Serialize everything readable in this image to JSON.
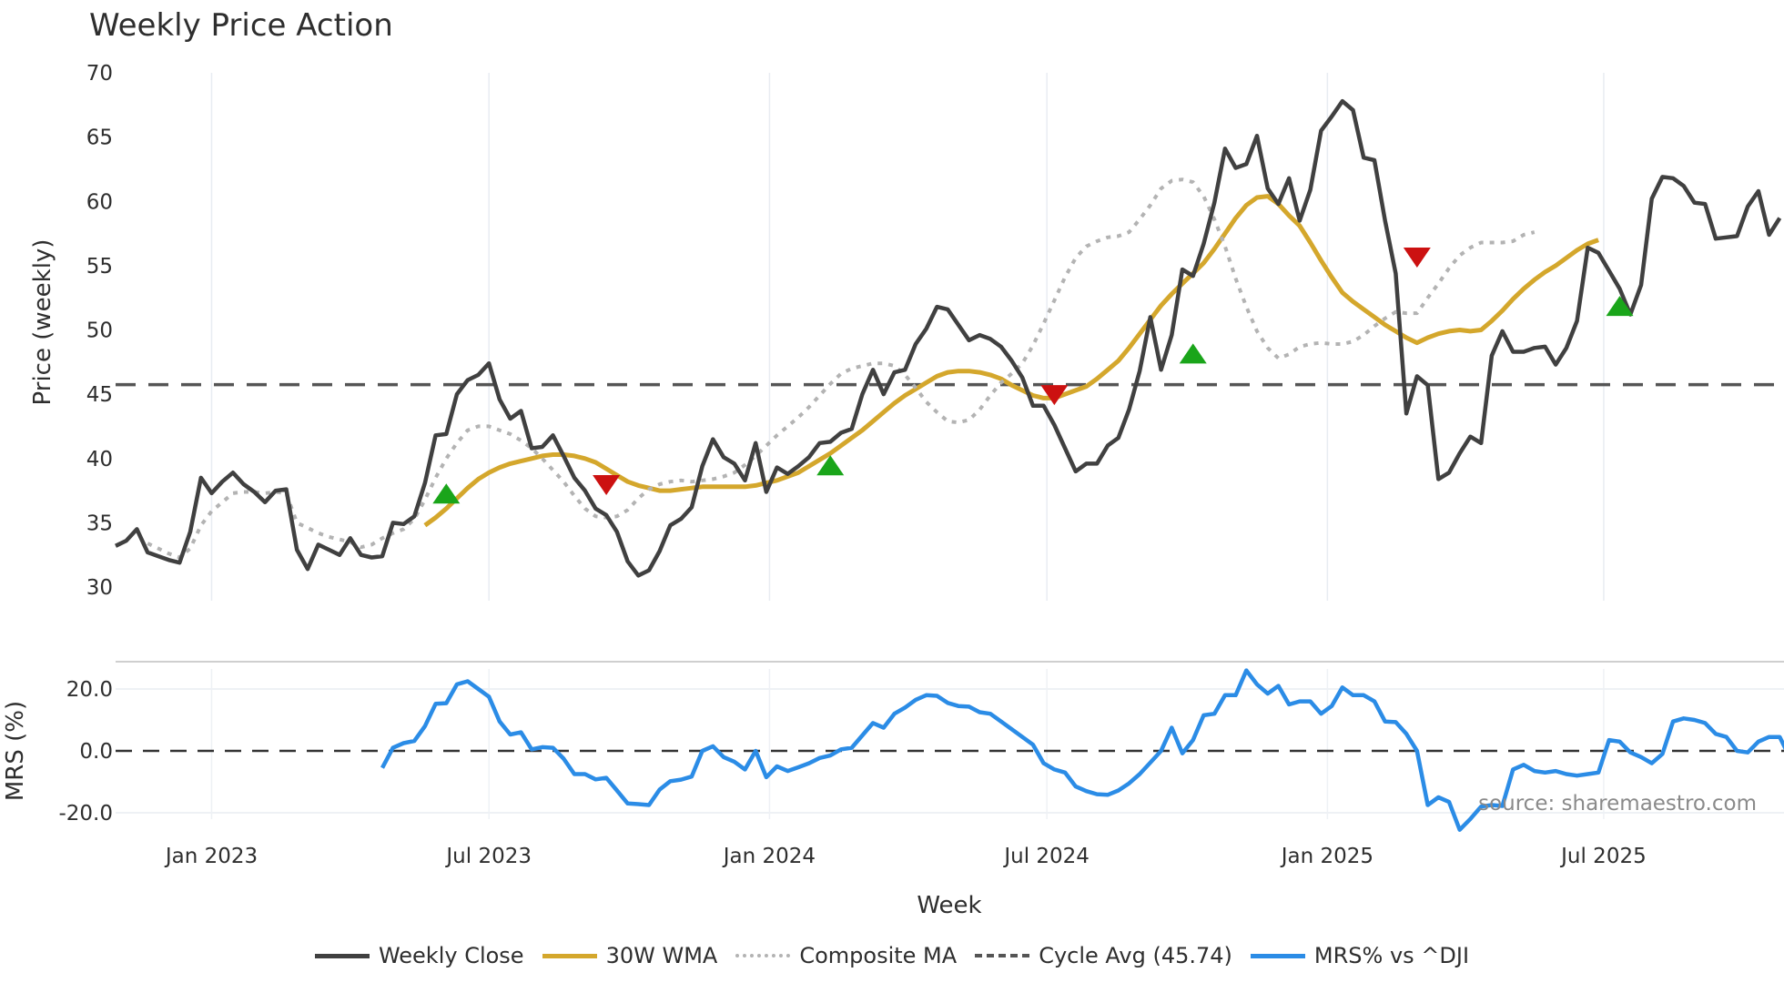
{
  "title": "Weekly Price Action",
  "watermark": "source: sharemaestro.com",
  "legend": [
    {
      "label": "Weekly Close",
      "color": "#404040",
      "style": "solid"
    },
    {
      "label": "30W WMA",
      "color": "#d4a72c",
      "style": "solid"
    },
    {
      "label": "Composite MA",
      "color": "#b3b3b3",
      "style": "dotted"
    },
    {
      "label": "Cycle Avg (45.74)",
      "color": "#555555",
      "style": "dashed"
    },
    {
      "label": "MRS% vs ^DJI",
      "color": "#2b8ce6",
      "style": "solid"
    }
  ],
  "chart_data": [
    {
      "type": "line",
      "title": "Weekly Price Action",
      "xlabel": "Week",
      "ylabel": "Price (weekly)",
      "ylim": [
        30,
        70
      ],
      "yticks": [
        30,
        35,
        40,
        45,
        50,
        55,
        60,
        65,
        70
      ],
      "xticks": [
        {
          "label": "Jan 2023",
          "week": 9
        },
        {
          "label": "Jul 2023",
          "week": 35
        },
        {
          "label": "Jan 2024",
          "week": 61.3
        },
        {
          "label": "Jul 2024",
          "week": 87.3
        },
        {
          "label": "Jan 2025",
          "week": 113.6
        },
        {
          "label": "Jul 2025",
          "week": 139.5
        }
      ],
      "grid": "vertical",
      "cycle_avg": 45.74,
      "series": [
        {
          "name": "Weekly Close",
          "start_week": 0,
          "values": [
            33.2,
            33.6,
            34.5,
            32.7,
            32.4,
            32.1,
            31.9,
            34.3,
            38.5,
            37.3,
            38.2,
            38.9,
            38.0,
            37.4,
            36.6,
            37.5,
            37.6,
            32.9,
            31.4,
            33.3,
            32.9,
            32.5,
            33.8,
            32.5,
            32.3,
            32.4,
            35.0,
            34.9,
            35.5,
            38.1,
            41.8,
            41.9,
            45.0,
            46.1,
            46.5,
            47.4,
            44.6,
            43.1,
            43.7,
            40.8,
            40.9,
            41.8,
            40.2,
            38.5,
            37.5,
            36.1,
            35.6,
            34.3,
            32.0,
            30.9,
            31.3,
            32.8,
            34.8,
            35.3,
            36.2,
            39.4,
            41.5,
            40.1,
            39.6,
            38.3,
            41.2,
            37.4,
            39.3,
            38.8,
            39.4,
            40.1,
            41.2,
            41.3,
            42.0,
            42.3,
            45.0,
            46.9,
            45.0,
            46.7,
            46.9,
            48.9,
            50.1,
            51.8,
            51.6,
            50.4,
            49.2,
            49.6,
            49.3,
            48.7,
            47.6,
            46.3,
            44.1,
            44.1,
            42.6,
            40.8,
            39.0,
            39.6,
            39.6,
            41.0,
            41.6,
            43.8,
            46.8,
            51.0,
            46.9,
            49.6,
            54.7,
            54.2,
            56.7,
            59.9,
            64.1,
            62.6,
            62.9,
            65.1,
            61.0,
            59.8,
            61.8,
            58.5,
            60.9,
            65.5,
            66.6,
            67.8,
            67.1,
            63.4,
            63.2,
            58.5,
            54.4,
            43.5,
            46.4,
            45.7,
            38.4,
            38.9,
            40.4,
            41.7,
            41.2,
            48.0,
            49.9,
            48.3,
            48.3,
            48.6,
            48.7,
            47.3,
            48.6,
            50.7,
            56.4,
            56.0,
            54.6,
            53.2,
            51.2,
            53.5,
            60.2,
            61.9,
            61.8,
            61.2,
            59.9,
            59.8,
            57.1,
            57.2,
            57.3,
            59.6,
            60.8,
            57.4,
            58.7
          ]
        },
        {
          "name": "30W WMA",
          "start_week": 29,
          "values": [
            34.8,
            35.4,
            36.1,
            36.9,
            37.7,
            38.4,
            38.9,
            39.3,
            39.6,
            39.8,
            40.0,
            40.2,
            40.3,
            40.3,
            40.2,
            40.0,
            39.7,
            39.2,
            38.7,
            38.2,
            37.9,
            37.7,
            37.5,
            37.5,
            37.6,
            37.7,
            37.8,
            37.8,
            37.8,
            37.8,
            37.8,
            37.9,
            38.1,
            38.3,
            38.6,
            38.9,
            39.4,
            39.9,
            40.4,
            41.0,
            41.6,
            42.2,
            42.9,
            43.6,
            44.3,
            44.9,
            45.4,
            45.9,
            46.4,
            46.7,
            46.8,
            46.8,
            46.7,
            46.5,
            46.2,
            45.7,
            45.3,
            44.9,
            44.7,
            44.7,
            45.0,
            45.3,
            45.6,
            46.2,
            46.9,
            47.6,
            48.6,
            49.7,
            50.8,
            51.9,
            52.8,
            53.6,
            54.4,
            55.2,
            56.3,
            57.5,
            58.7,
            59.7,
            60.3,
            60.4,
            59.8,
            58.9,
            58.1,
            56.8,
            55.4,
            54.1,
            52.9,
            52.2,
            51.6,
            51.0,
            50.4,
            49.9,
            49.4,
            49.0,
            49.4,
            49.7,
            49.9,
            50.0,
            49.9,
            50.0,
            50.7,
            51.5,
            52.4,
            53.2,
            53.9,
            54.5,
            55.0,
            55.6,
            56.2,
            56.7,
            57.0
          ]
        },
        {
          "name": "Composite MA",
          "start_week": 3,
          "values": [
            33.4,
            33.0,
            32.6,
            32.3,
            33.0,
            34.8,
            35.9,
            36.6,
            37.3,
            37.4,
            37.4,
            37.3,
            37.4,
            37.3,
            35.0,
            34.6,
            34.2,
            33.9,
            33.7,
            33.5,
            33.1,
            33.3,
            33.8,
            34.2,
            34.5,
            35.3,
            36.8,
            38.5,
            40.0,
            41.2,
            42.2,
            42.5,
            42.5,
            42.2,
            41.9,
            41.4,
            40.8,
            40.0,
            39.1,
            38.2,
            37.1,
            36.1,
            35.5,
            35.4,
            35.5,
            36.0,
            36.9,
            37.6,
            38.0,
            38.2,
            38.3,
            38.2,
            38.3,
            38.4,
            38.6,
            38.9,
            39.5,
            40.2,
            41.0,
            41.8,
            42.5,
            43.2,
            44.0,
            44.9,
            45.8,
            46.6,
            47.0,
            47.2,
            47.4,
            47.4,
            47.2,
            46.5,
            45.5,
            44.4,
            43.6,
            42.9,
            42.8,
            43.0,
            43.8,
            44.9,
            45.9,
            46.6,
            47.4,
            48.8,
            50.5,
            52.3,
            54.1,
            55.6,
            56.5,
            56.9,
            57.2,
            57.3,
            57.6,
            58.6,
            59.7,
            61.0,
            61.6,
            61.7,
            61.5,
            60.4,
            58.6,
            56.5,
            54.0,
            51.8,
            49.9,
            48.6,
            47.8,
            48.1,
            48.7,
            48.9,
            49.0,
            48.9,
            48.9,
            49.1,
            49.6,
            50.3,
            50.9,
            51.4,
            51.3,
            51.3,
            52.5,
            53.6,
            54.8,
            55.8,
            56.4,
            56.8,
            56.8,
            56.8,
            56.9,
            57.4,
            57.6
          ]
        }
      ],
      "signals": [
        {
          "type": "buy",
          "week": 31,
          "value": 37.2
        },
        {
          "type": "sell",
          "week": 46,
          "value": 38.0
        },
        {
          "type": "buy",
          "week": 67,
          "value": 39.4
        },
        {
          "type": "sell",
          "week": 88,
          "value": 45.0
        },
        {
          "type": "buy",
          "week": 101,
          "value": 48.1
        },
        {
          "type": "sell",
          "week": 122,
          "value": 55.7
        },
        {
          "type": "buy",
          "week": 141,
          "value": 51.8
        }
      ]
    },
    {
      "type": "line",
      "title": "",
      "xlabel": "Week",
      "ylabel": "MRS (%)",
      "ylim": [
        -27,
        29
      ],
      "yticks": [
        -20.0,
        0.0,
        20.0
      ],
      "zero_line": 0.0,
      "series": [
        {
          "name": "MRS% vs ^DJI",
          "start_week": 25,
          "values": [
            -5.5,
            1.0,
            2.5,
            3.2,
            8.0,
            15.2,
            15.4,
            21.5,
            22.5,
            20.0,
            17.5,
            9.5,
            5.3,
            6.0,
            0.5,
            1.2,
            1.0,
            -2.5,
            -7.5,
            -7.5,
            -9.2,
            -8.7,
            -12.8,
            -17.0,
            -17.2,
            -17.5,
            -12.5,
            -9.8,
            -9.3,
            -8.3,
            0.0,
            1.5,
            -2.0,
            -3.5,
            -6.0,
            0.0,
            -8.5,
            -5.0,
            -6.5,
            -5.3,
            -4.0,
            -2.3,
            -1.5,
            0.5,
            1.0,
            5.0,
            9.0,
            7.5,
            12.0,
            14.0,
            16.5,
            18.0,
            17.8,
            15.5,
            14.5,
            14.3,
            12.5,
            12.0,
            9.5,
            7.0,
            4.5,
            2.0,
            -4.0,
            -6.0,
            -7.0,
            -11.5,
            -13.0,
            -14.0,
            -14.2,
            -12.8,
            -10.5,
            -7.5,
            -3.8,
            0.0,
            7.5,
            -0.8,
            3.5,
            11.5,
            12.0,
            18.0,
            18.0,
            26.0,
            21.5,
            18.5,
            21.0,
            15.0,
            16.0,
            16.0,
            12.0,
            14.5,
            20.5,
            18.0,
            18.0,
            16.0,
            9.5,
            9.3,
            5.5,
            0.0,
            -17.5,
            -15.0,
            -16.5,
            -25.5,
            -22.0,
            -18.0,
            -17.5,
            -17.8,
            -6.0,
            -4.5,
            -6.5,
            -7.0,
            -6.5,
            -7.5,
            -8.0,
            -7.5,
            -7.0,
            3.5,
            3.0,
            -0.5,
            -2.0,
            -4.0,
            -1.0,
            9.5,
            10.5,
            10.0,
            9.0,
            5.5,
            4.5,
            0.0,
            -0.5,
            3.0,
            4.5,
            4.5,
            -2.5,
            1.5
          ]
        }
      ]
    }
  ]
}
